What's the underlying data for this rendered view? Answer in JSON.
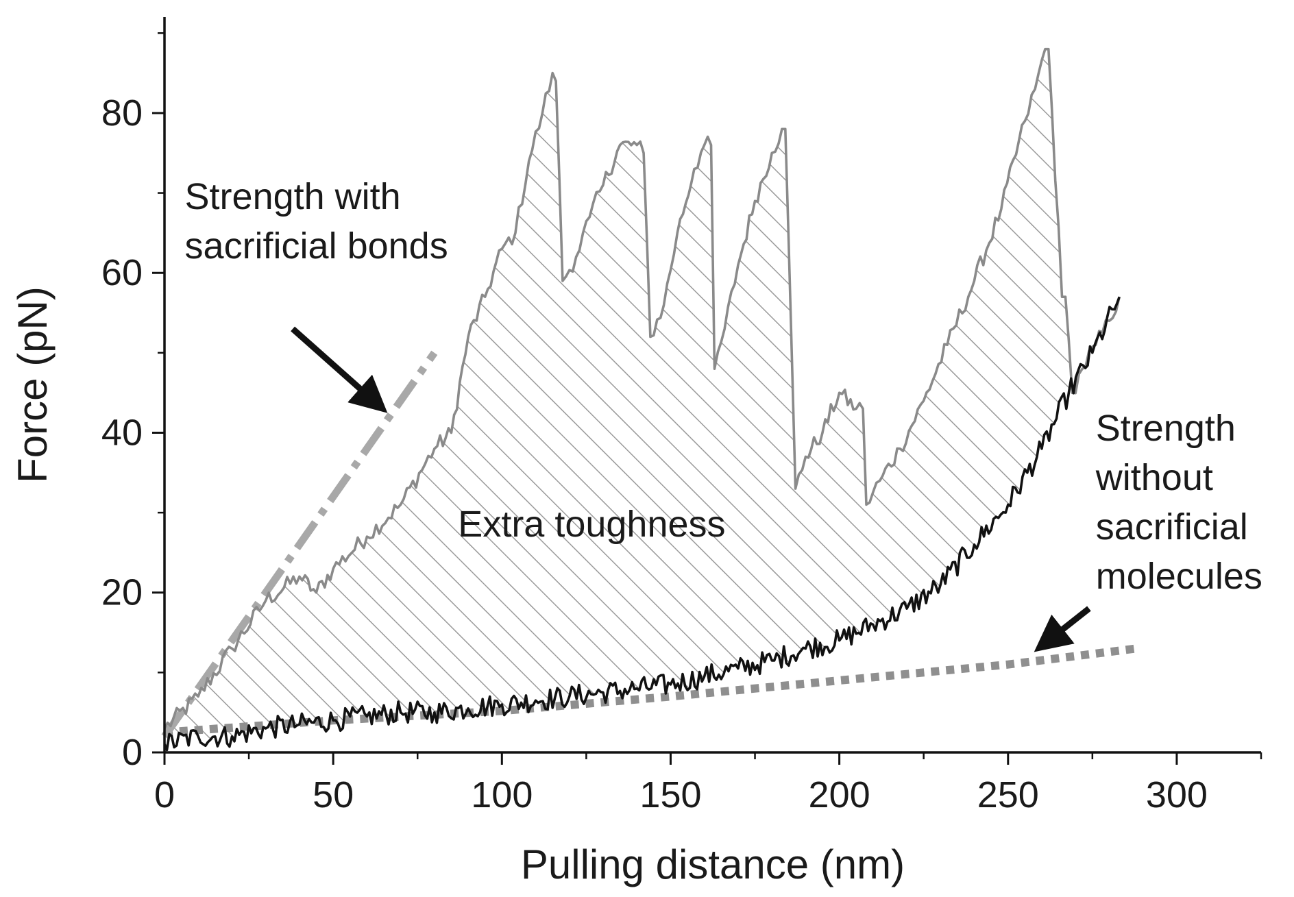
{
  "chart_data": {
    "type": "line",
    "title": "",
    "xlabel": "Pulling distance (nm)",
    "ylabel": "Force (pN)",
    "xlim": [
      0,
      325
    ],
    "ylim": [
      0,
      92
    ],
    "x_ticks": [
      0,
      50,
      100,
      150,
      200,
      250,
      300
    ],
    "y_ticks": [
      0,
      20,
      40,
      60,
      80
    ],
    "x_tick_labels": [
      "0",
      "50",
      "100",
      "150",
      "200",
      "250",
      "300"
    ],
    "y_tick_labels": [
      "0",
      "20",
      "40",
      "60",
      "80"
    ],
    "grid": false,
    "legend": "none",
    "colors": {
      "with_bonds": "#8a8a8a",
      "without_bonds": "#111111",
      "dash_dot_fit": "#a8a8a8",
      "dotted_fit": "#8f8f8f",
      "hatch": "#9a9a9a",
      "arrow": "#111111"
    },
    "series": [
      {
        "key": "with_bonds",
        "style": "solid-gray-noisy",
        "points": [
          [
            0,
            3
          ],
          [
            10,
            7
          ],
          [
            20,
            13
          ],
          [
            30,
            19
          ],
          [
            40,
            22
          ],
          [
            45,
            20
          ],
          [
            50,
            23
          ],
          [
            60,
            27
          ],
          [
            70,
            31
          ],
          [
            80,
            38
          ],
          [
            85,
            40
          ],
          [
            90,
            52
          ],
          [
            95,
            57
          ],
          [
            100,
            63
          ],
          [
            104,
            65
          ],
          [
            108,
            74
          ],
          [
            112,
            80
          ],
          [
            115,
            85
          ],
          [
            116,
            84
          ],
          [
            118,
            59
          ],
          [
            122,
            62
          ],
          [
            126,
            67
          ],
          [
            130,
            71
          ],
          [
            135,
            76
          ],
          [
            140,
            76
          ],
          [
            142,
            75
          ],
          [
            144,
            52
          ],
          [
            148,
            56
          ],
          [
            152,
            65
          ],
          [
            157,
            73
          ],
          [
            160,
            76
          ],
          [
            162,
            76
          ],
          [
            163,
            48
          ],
          [
            166,
            53
          ],
          [
            170,
            61
          ],
          [
            175,
            69
          ],
          [
            180,
            75
          ],
          [
            183,
            78
          ],
          [
            184,
            78
          ],
          [
            187,
            33
          ],
          [
            190,
            37
          ],
          [
            195,
            40
          ],
          [
            200,
            45
          ],
          [
            205,
            43
          ],
          [
            207,
            43
          ],
          [
            208,
            31
          ],
          [
            212,
            34
          ],
          [
            218,
            38
          ],
          [
            225,
            44
          ],
          [
            232,
            51
          ],
          [
            240,
            59
          ],
          [
            248,
            68
          ],
          [
            255,
            79
          ],
          [
            258,
            83
          ],
          [
            261,
            88
          ],
          [
            262,
            88
          ],
          [
            266,
            57
          ],
          [
            267,
            57
          ],
          [
            269,
            45
          ],
          [
            272,
            48
          ],
          [
            276,
            51
          ],
          [
            280,
            54
          ],
          [
            283,
            57
          ]
        ]
      },
      {
        "key": "without_bonds",
        "style": "solid-black-noisy",
        "points": [
          [
            0,
            1
          ],
          [
            10,
            2
          ],
          [
            20,
            2
          ],
          [
            30,
            3
          ],
          [
            40,
            3.5
          ],
          [
            50,
            4
          ],
          [
            60,
            4.5
          ],
          [
            70,
            5
          ],
          [
            80,
            5
          ],
          [
            90,
            5.5
          ],
          [
            100,
            6
          ],
          [
            110,
            6.5
          ],
          [
            120,
            7
          ],
          [
            130,
            7.5
          ],
          [
            140,
            8
          ],
          [
            150,
            8.5
          ],
          [
            160,
            9.5
          ],
          [
            170,
            10.5
          ],
          [
            180,
            11.5
          ],
          [
            190,
            13
          ],
          [
            200,
            14
          ],
          [
            210,
            16
          ],
          [
            220,
            18
          ],
          [
            230,
            21
          ],
          [
            240,
            26
          ],
          [
            250,
            31
          ],
          [
            260,
            38
          ],
          [
            268,
            45
          ],
          [
            275,
            50
          ],
          [
            283,
            57
          ]
        ]
      },
      {
        "key": "dash_dot_fit",
        "style": "dash-dot-gray",
        "points": [
          [
            0,
            2
          ],
          [
            80,
            50
          ]
        ]
      },
      {
        "key": "dotted_fit",
        "style": "dotted-gray",
        "points": [
          [
            0,
            2.5
          ],
          [
            50,
            4
          ],
          [
            100,
            5.2
          ],
          [
            150,
            7
          ],
          [
            200,
            9
          ],
          [
            250,
            11
          ],
          [
            288,
            13
          ]
        ]
      }
    ],
    "fill_between": {
      "upper": "with_bonds",
      "lower": "without_bonds",
      "pattern": "diagonal-hatch"
    },
    "annotations": [
      {
        "key": "strength_with",
        "lines": [
          "Strength with",
          "sacrificial bonds"
        ],
        "anchor": [
          6,
          68
        ],
        "align": "start"
      },
      {
        "key": "extra_toughness",
        "lines": [
          "Extra toughness"
        ],
        "anchor": [
          87,
          27
        ],
        "align": "start"
      },
      {
        "key": "strength_without",
        "lines": [
          "Strength",
          "without",
          "sacrificial",
          "molecules"
        ],
        "anchor": [
          276,
          39
        ],
        "align": "start"
      }
    ],
    "arrows": [
      {
        "key": "arrow_with",
        "from": [
          38,
          53
        ],
        "to": [
          62,
          44
        ]
      },
      {
        "key": "arrow_without",
        "from": [
          274,
          18
        ],
        "to": [
          262,
          14
        ]
      }
    ]
  }
}
